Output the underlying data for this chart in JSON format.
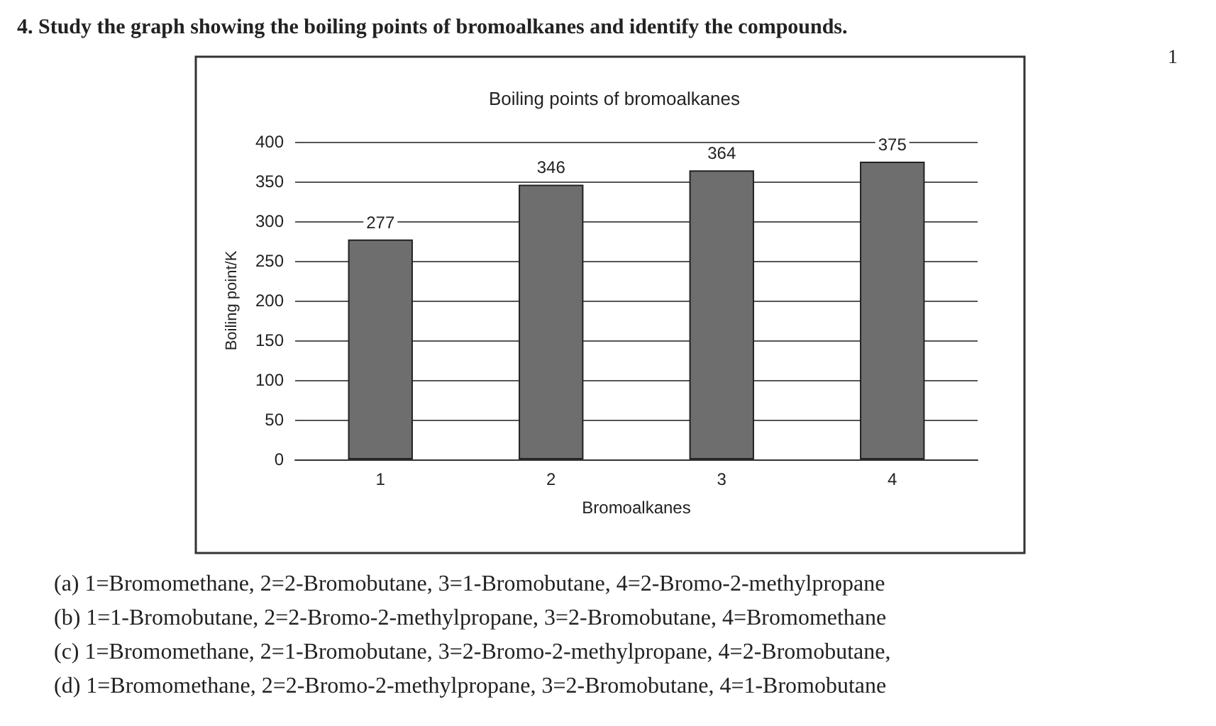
{
  "chart_data": {
    "type": "bar",
    "title": "Boiling points of bromoalkanes",
    "xlabel": "Bromoalkanes",
    "ylabel": "Boiling point/K",
    "categories": [
      "1",
      "2",
      "3",
      "4"
    ],
    "values": [
      277,
      346,
      364,
      375
    ],
    "color": "#6e6e6e",
    "ylim": [
      0,
      400
    ],
    "yticks": [
      0,
      50,
      100,
      150,
      200,
      250,
      300,
      350,
      400
    ],
    "grid": "y",
    "data_labels": true,
    "annotations": [
      "4. Study the graph showing the boiling points of bromoalkanes and identify the compounds.",
      "1",
      "(a) 1=Bromomethane, 2=2-Bromobutane, 3=1-Bromobutane, 4=2-Bromo-2-methylpropane",
      "(b) 1=1-Bromobutane, 2=2-Bromo-2-methylpropane, 3=2-Bromobutane, 4=Bromomethane",
      "(c) 1=Bromomethane, 2=1-Bromobutane, 3=2-Bromo-2-methylpropane, 4=2-Bromobutane,",
      "(d) 1=Bromomethane, 2=2-Bromo-2-methylpropane, 3=2-Bromobutane, 4=1-Bromobutane"
    ]
  }
}
